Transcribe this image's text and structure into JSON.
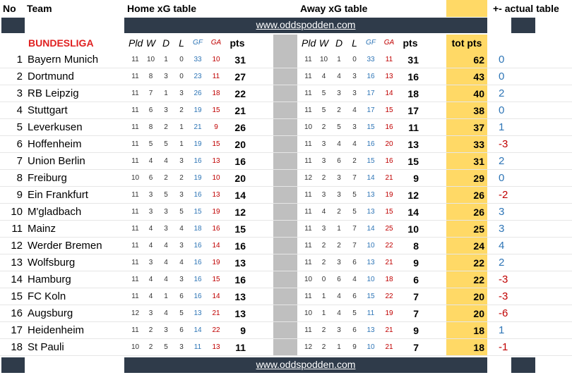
{
  "header": {
    "no": "No",
    "team": "Team",
    "home_title": "Home xG table",
    "away_title": "Away xG table",
    "tot_pts": "tot pts",
    "actual": "+- actual table",
    "url": "www.oddspodden.com",
    "league": "BUNDESLIGA",
    "cols": {
      "pld": "Pld",
      "w": "W",
      "d": "D",
      "l": "L",
      "gf": "GF",
      "ga": "GA",
      "pts": "pts"
    }
  },
  "colors": {
    "dark_band": "#2f3b4a",
    "gold": "#ffd966",
    "grey": "#bfbfbf",
    "blue": "#2e75b6",
    "red": "#c00000"
  },
  "rows": [
    {
      "no": "1",
      "team": "Bayern Munich",
      "h": [
        "11",
        "10",
        "1",
        "0",
        "33",
        "10",
        "31"
      ],
      "a": [
        "11",
        "10",
        "1",
        "0",
        "33",
        "11",
        "31"
      ],
      "tot": "62",
      "diff": "0"
    },
    {
      "no": "2",
      "team": "Dortmund",
      "h": [
        "11",
        "8",
        "3",
        "0",
        "23",
        "11",
        "27"
      ],
      "a": [
        "11",
        "4",
        "4",
        "3",
        "16",
        "13",
        "16"
      ],
      "tot": "43",
      "diff": "0"
    },
    {
      "no": "3",
      "team": "RB Leipzig",
      "h": [
        "11",
        "7",
        "1",
        "3",
        "26",
        "18",
        "22"
      ],
      "a": [
        "11",
        "5",
        "3",
        "3",
        "17",
        "14",
        "18"
      ],
      "tot": "40",
      "diff": "2"
    },
    {
      "no": "4",
      "team": "Stuttgart",
      "h": [
        "11",
        "6",
        "3",
        "2",
        "19",
        "15",
        "21"
      ],
      "a": [
        "11",
        "5",
        "2",
        "4",
        "17",
        "15",
        "17"
      ],
      "tot": "38",
      "diff": "0"
    },
    {
      "no": "5",
      "team": "Leverkusen",
      "h": [
        "11",
        "8",
        "2",
        "1",
        "21",
        "9",
        "26"
      ],
      "a": [
        "10",
        "2",
        "5",
        "3",
        "15",
        "16",
        "11"
      ],
      "tot": "37",
      "diff": "1"
    },
    {
      "no": "6",
      "team": "Hoffenheim",
      "h": [
        "11",
        "5",
        "5",
        "1",
        "19",
        "15",
        "20"
      ],
      "a": [
        "11",
        "3",
        "4",
        "4",
        "16",
        "20",
        "13"
      ],
      "tot": "33",
      "diff": "-3"
    },
    {
      "no": "7",
      "team": "Union Berlin",
      "h": [
        "11",
        "4",
        "4",
        "3",
        "16",
        "13",
        "16"
      ],
      "a": [
        "11",
        "3",
        "6",
        "2",
        "15",
        "16",
        "15"
      ],
      "tot": "31",
      "diff": "2"
    },
    {
      "no": "8",
      "team": "Freiburg",
      "h": [
        "10",
        "6",
        "2",
        "2",
        "19",
        "10",
        "20"
      ],
      "a": [
        "12",
        "2",
        "3",
        "7",
        "14",
        "21",
        "9"
      ],
      "tot": "29",
      "diff": "0"
    },
    {
      "no": "9",
      "team": "Ein Frankfurt",
      "h": [
        "11",
        "3",
        "5",
        "3",
        "16",
        "13",
        "14"
      ],
      "a": [
        "11",
        "3",
        "3",
        "5",
        "13",
        "19",
        "12"
      ],
      "tot": "26",
      "diff": "-2"
    },
    {
      "no": "10",
      "team": "M'gladbach",
      "h": [
        "11",
        "3",
        "3",
        "5",
        "15",
        "19",
        "12"
      ],
      "a": [
        "11",
        "4",
        "2",
        "5",
        "13",
        "15",
        "14"
      ],
      "tot": "26",
      "diff": "3"
    },
    {
      "no": "11",
      "team": "Mainz",
      "h": [
        "11",
        "4",
        "3",
        "4",
        "18",
        "16",
        "15"
      ],
      "a": [
        "11",
        "3",
        "1",
        "7",
        "14",
        "25",
        "10"
      ],
      "tot": "25",
      "diff": "3"
    },
    {
      "no": "12",
      "team": "Werder Bremen",
      "h": [
        "11",
        "4",
        "4",
        "3",
        "16",
        "14",
        "16"
      ],
      "a": [
        "11",
        "2",
        "2",
        "7",
        "10",
        "22",
        "8"
      ],
      "tot": "24",
      "diff": "4"
    },
    {
      "no": "13",
      "team": "Wolfsburg",
      "h": [
        "11",
        "3",
        "4",
        "4",
        "16",
        "19",
        "13"
      ],
      "a": [
        "11",
        "2",
        "3",
        "6",
        "13",
        "21",
        "9"
      ],
      "tot": "22",
      "diff": "2"
    },
    {
      "no": "14",
      "team": "Hamburg",
      "h": [
        "11",
        "4",
        "4",
        "3",
        "16",
        "15",
        "16"
      ],
      "a": [
        "10",
        "0",
        "6",
        "4",
        "10",
        "18",
        "6"
      ],
      "tot": "22",
      "diff": "-3"
    },
    {
      "no": "15",
      "team": "FC Koln",
      "h": [
        "11",
        "4",
        "1",
        "6",
        "16",
        "14",
        "13"
      ],
      "a": [
        "11",
        "1",
        "4",
        "6",
        "15",
        "22",
        "7"
      ],
      "tot": "20",
      "diff": "-3"
    },
    {
      "no": "16",
      "team": "Augsburg",
      "h": [
        "12",
        "3",
        "4",
        "5",
        "13",
        "21",
        "13"
      ],
      "a": [
        "10",
        "1",
        "4",
        "5",
        "11",
        "19",
        "7"
      ],
      "tot": "20",
      "diff": "-6"
    },
    {
      "no": "17",
      "team": "Heidenheim",
      "h": [
        "11",
        "2",
        "3",
        "6",
        "14",
        "22",
        "9"
      ],
      "a": [
        "11",
        "2",
        "3",
        "6",
        "13",
        "21",
        "9"
      ],
      "tot": "18",
      "diff": "1"
    },
    {
      "no": "18",
      "team": "St Pauli",
      "h": [
        "10",
        "2",
        "5",
        "3",
        "11",
        "13",
        "11"
      ],
      "a": [
        "12",
        "2",
        "1",
        "9",
        "10",
        "21",
        "7"
      ],
      "tot": "18",
      "diff": "-1"
    }
  ]
}
